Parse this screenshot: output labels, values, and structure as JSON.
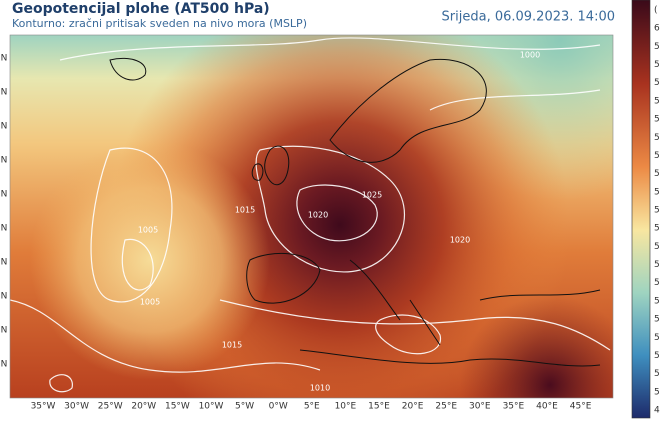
{
  "header": {
    "title": "Geopotencijal plohe (AT500 hPa)",
    "subtitle": "Konturno: zračni pritisak sveden na nivo mora (MSLP)",
    "datetime": "Srijeda, 06.09.2023. 14:00"
  },
  "map": {
    "longitude_labels": [
      "35°W",
      "30°W",
      "25°W",
      "20°W",
      "15°W",
      "10°W",
      "5°W",
      "0°W",
      "5°E",
      "10°E",
      "15°E",
      "20°E",
      "25°E",
      "30°E",
      "35°E",
      "40°E",
      "45°E"
    ],
    "latitude_labels": [
      "N",
      "N",
      "N",
      "N",
      "N",
      "N",
      "N",
      "N",
      "N",
      "N"
    ],
    "isobar_labels": [
      "1005",
      "1005",
      "1015",
      "1025",
      "1020",
      "1020",
      "1015",
      "1010",
      "1000"
    ]
  },
  "colorbar": {
    "labels": [
      "(",
      "6",
      "5",
      "5",
      "5",
      "5",
      "5",
      "5",
      "5",
      "5",
      "5",
      "5",
      "5",
      "5",
      "5",
      "5",
      "5",
      "5",
      "5",
      "5",
      "5",
      "5",
      "4"
    ]
  }
}
